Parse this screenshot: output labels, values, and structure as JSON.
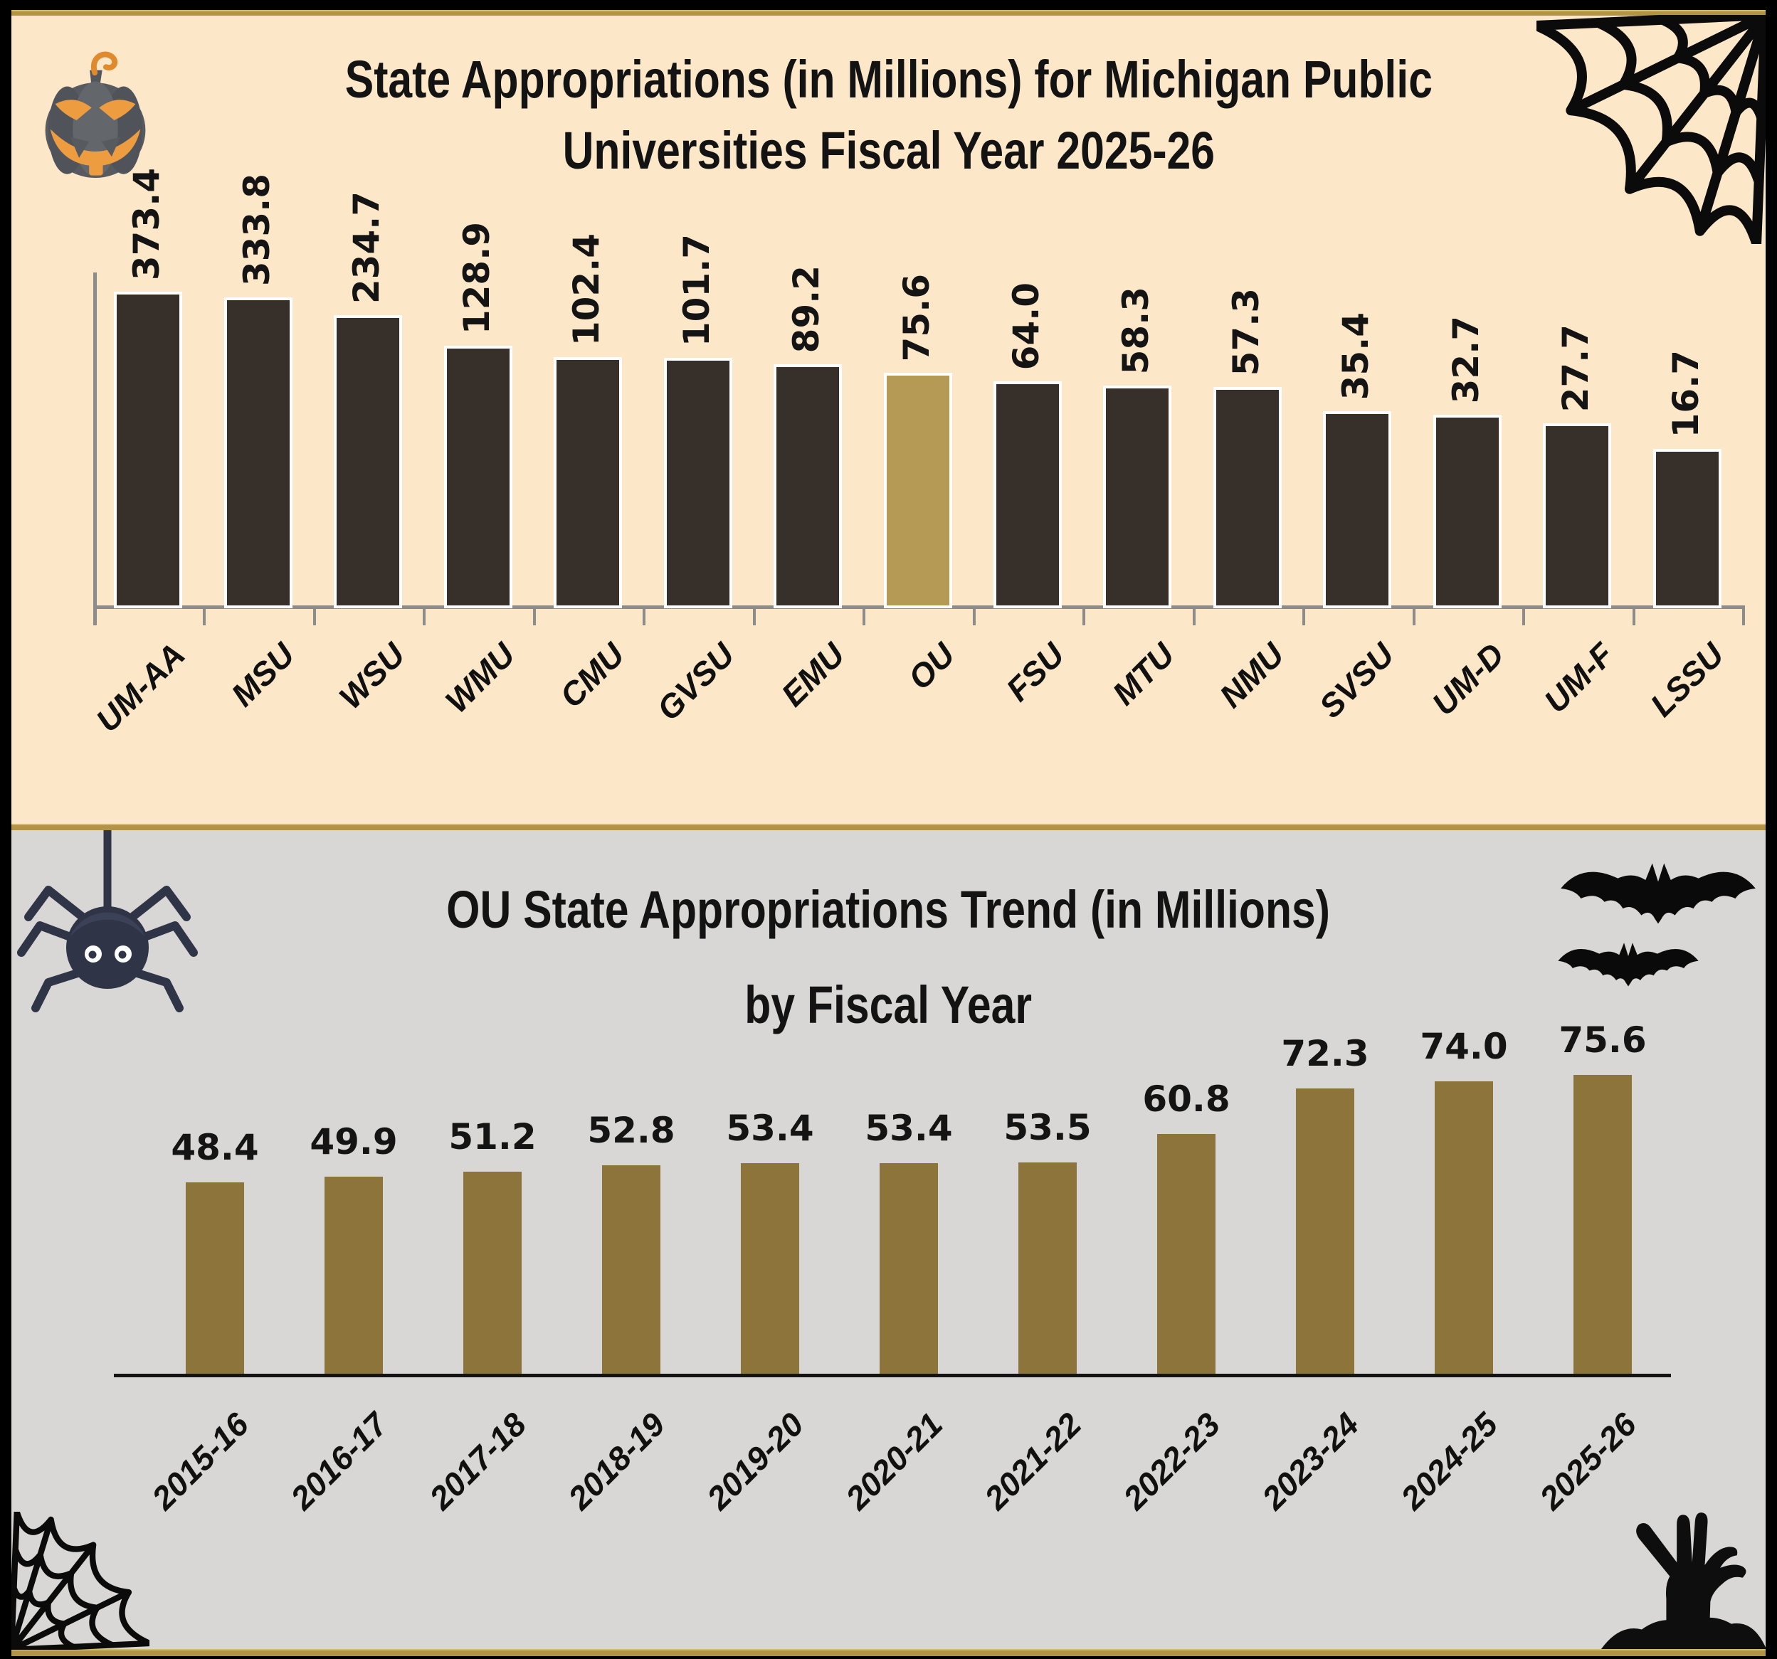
{
  "infographic": {
    "theme": "halloween",
    "colors": {
      "page_border": "#000000",
      "gold_rule": "#B39447",
      "top_panel_bg": "#FCE7C8",
      "bottom_panel_bg": "#D8D7D5",
      "dark_bar": "#37302A",
      "highlight_bar": "#B49A54",
      "trend_bar": "#8C743A",
      "top_axis_gray": "#8C8C8C",
      "bottom_axis_black": "#141414",
      "text": "#131313",
      "pumpkin_body": "#5E6266",
      "pumpkin_face": "#ED9C40",
      "spider_body": "#2F3447"
    },
    "decorations": [
      "jack-o-lantern-pumpkin",
      "spider-web-top-right",
      "hanging-spider",
      "bat-large",
      "bat-small",
      "spider-web-bottom-left",
      "zombie-hand"
    ]
  },
  "chart_data": [
    {
      "type": "bar",
      "title": "State Appropriations (in Millions) for Michigan Public Universities Fiscal Year 2025-26",
      "title_lines": [
        "State Appropriations (in Millions) for Michigan Public",
        "Universities Fiscal Year 2025-26"
      ],
      "categories": [
        "UM-AA",
        "MSU",
        "WSU",
        "WMU",
        "CMU",
        "GVSU",
        "EMU",
        "OU",
        "FSU",
        "MTU",
        "NMU",
        "SVSU",
        "UM-D",
        "UM-F",
        "LSSU"
      ],
      "values": [
        373.4,
        333.8,
        234.7,
        128.9,
        102.4,
        101.7,
        89.2,
        75.6,
        64.0,
        58.3,
        57.3,
        35.4,
        32.7,
        27.7,
        16.7
      ],
      "value_labels": [
        "373.4",
        "333.8",
        "234.7",
        "128.9",
        "102.4",
        "101.7",
        "89.2",
        "75.6",
        "64.0",
        "58.3",
        "57.3",
        "35.4",
        "32.7",
        "27.7",
        "16.7"
      ],
      "highlight_category": "OU",
      "highlight_index": 7,
      "bar_color": "#37302A",
      "highlight_color": "#B49A54",
      "background": "#FCE7C8",
      "value_label_rotation_deg": -90,
      "category_label_rotation_deg": -45,
      "xlabel": "",
      "ylabel": "",
      "grid": false,
      "legend": "none",
      "y_axis_tick_labels": "none (values shown as labels above bars)",
      "note": "bar heights in source image are compressed (log-like), not linear with value"
    },
    {
      "type": "bar",
      "title": "OU State Appropriations Trend (in Millions) by Fiscal Year",
      "title_lines": [
        "OU State Appropriations Trend (in Millions)",
        "by Fiscal Year"
      ],
      "categories": [
        "2015-16",
        "2016-17",
        "2017-18",
        "2018-19",
        "2019-20",
        "2020-21",
        "2021-22",
        "2022-23",
        "2023-24",
        "2024-25",
        "2025-26"
      ],
      "values": [
        48.4,
        49.9,
        51.2,
        52.8,
        53.4,
        53.4,
        53.5,
        60.8,
        72.3,
        74.0,
        75.6
      ],
      "value_labels": [
        "48.4",
        "49.9",
        "51.2",
        "52.8",
        "53.4",
        "53.4",
        "53.5",
        "60.8",
        "72.3",
        "74.0",
        "75.6"
      ],
      "bar_color": "#8C743A",
      "background": "#D8D7D5",
      "category_label_rotation_deg": -45,
      "xlabel": "",
      "ylabel": "",
      "ylim": [
        0,
        80
      ],
      "grid": false,
      "legend": "none"
    }
  ]
}
